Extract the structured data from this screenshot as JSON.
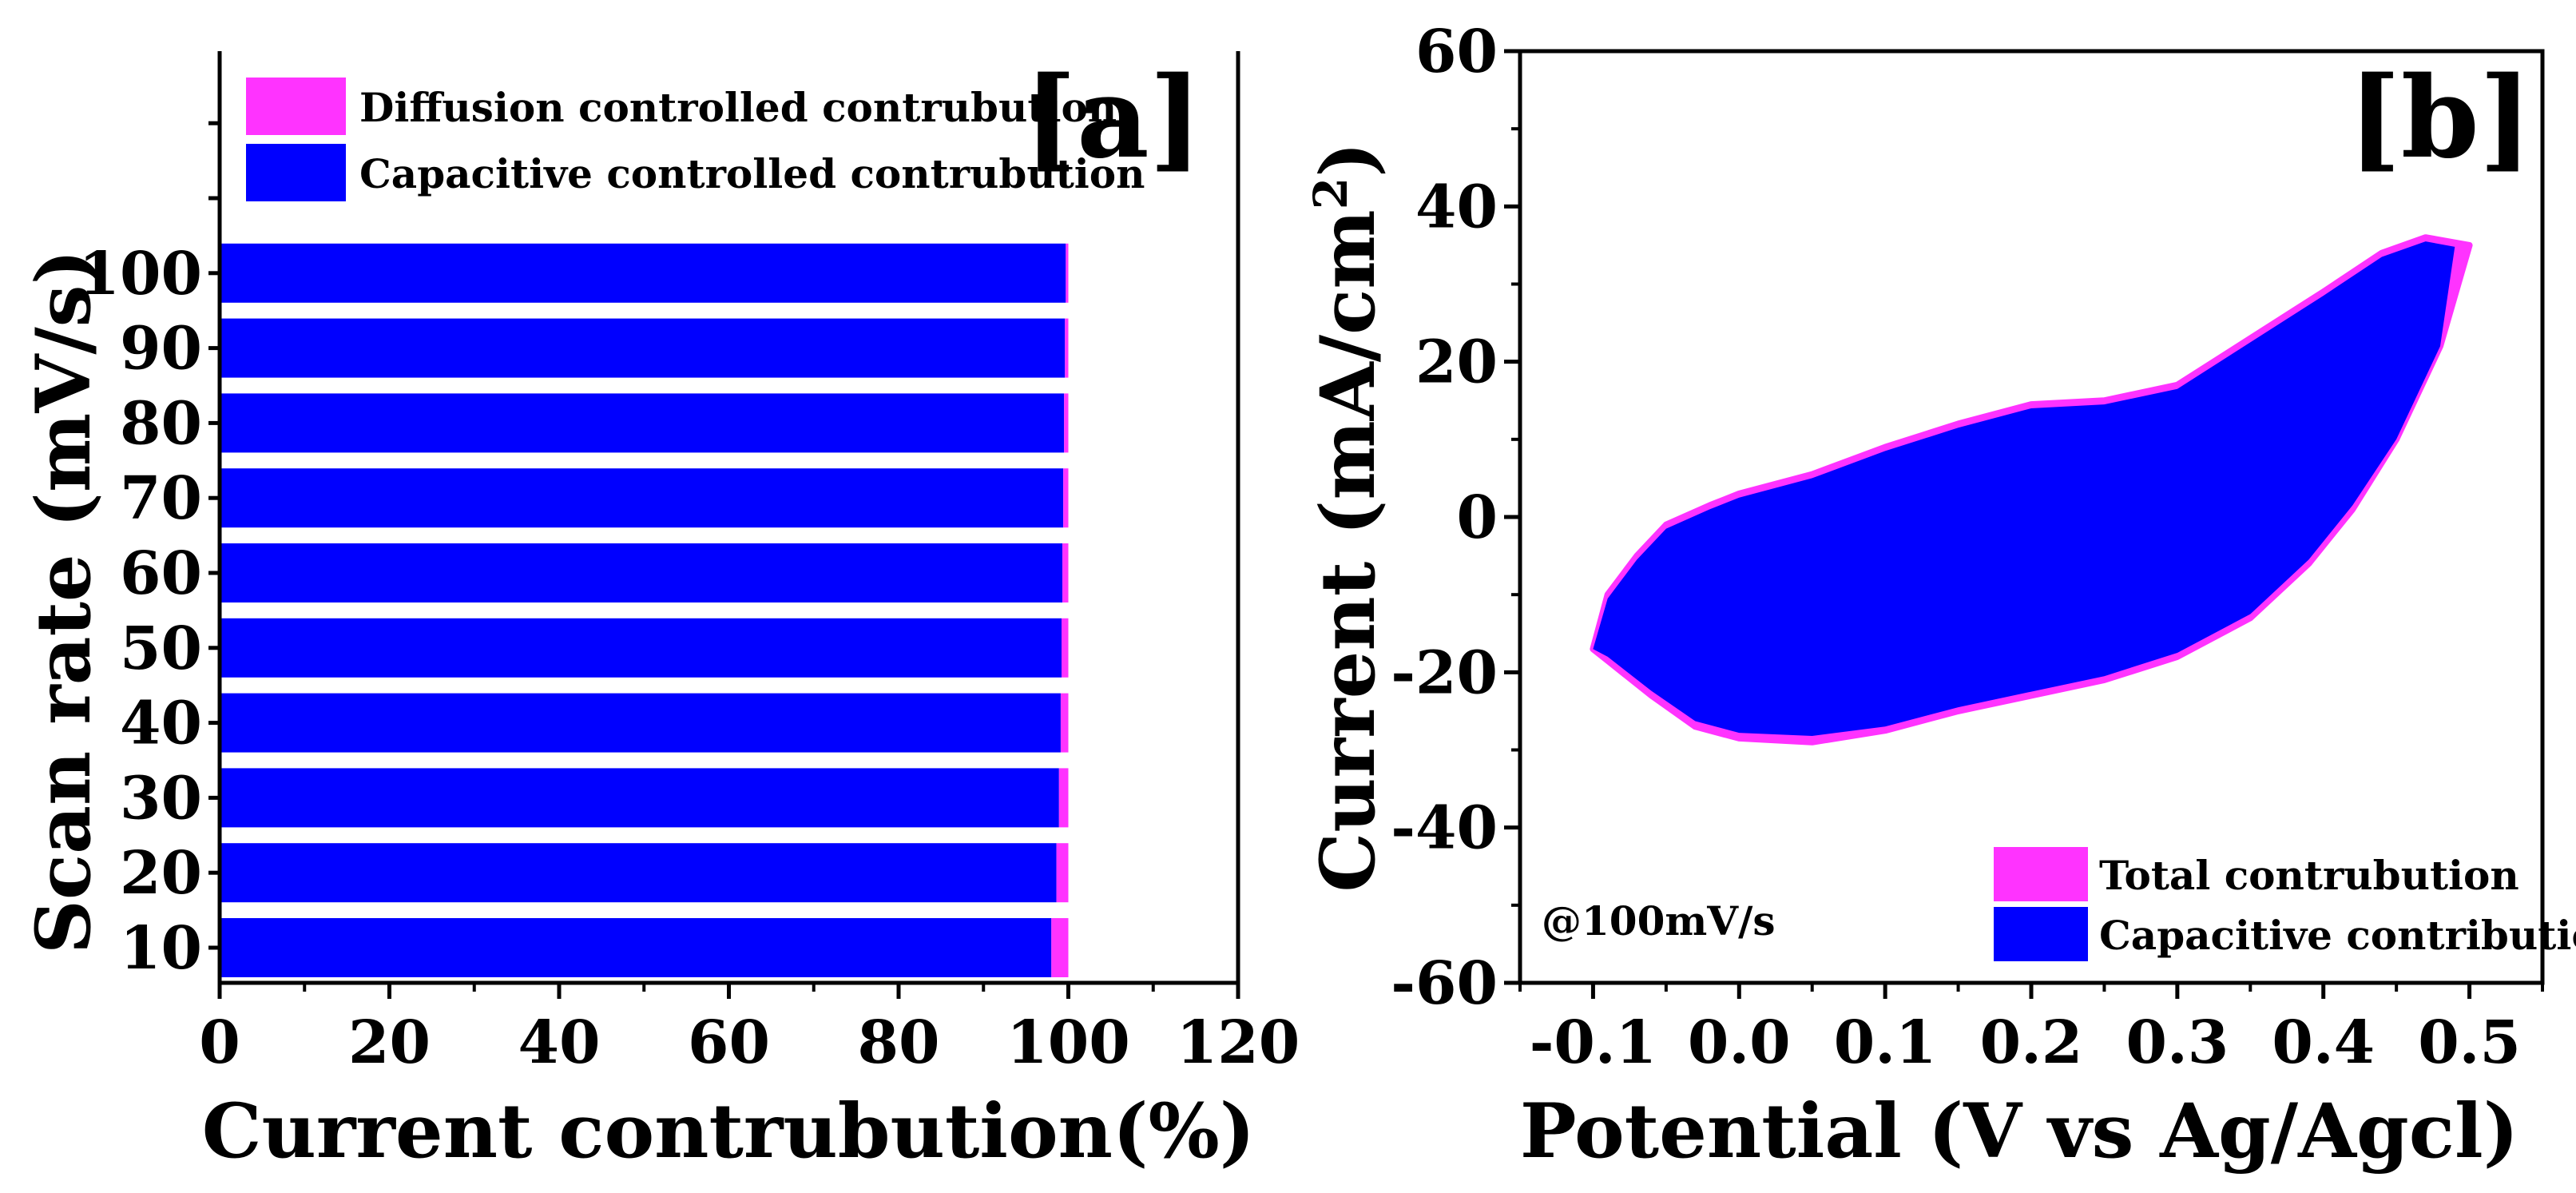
{
  "chart_data": [
    {
      "panel": "[a]",
      "type": "bar",
      "orientation": "horizontal",
      "stacked": true,
      "xlabel": "Current contrubution(%)",
      "ylabel": "Scan rate (mV/s)",
      "xlim": [
        0,
        120
      ],
      "xticks": [
        "0",
        "20",
        "40",
        "60",
        "80",
        "100",
        "120"
      ],
      "categories": [
        "10",
        "20",
        "30",
        "40",
        "50",
        "60",
        "70",
        "80",
        "90",
        "100"
      ],
      "series": [
        {
          "name": "Capacitive controlled contrubution",
          "color": "#0000ff",
          "values": [
            98,
            98.6,
            98.9,
            99.1,
            99.2,
            99.3,
            99.4,
            99.5,
            99.6,
            99.7
          ]
        },
        {
          "name": "Diffusion controlled contrubution",
          "color": "#ff33ff",
          "values": [
            2,
            1.4,
            1.1,
            0.9,
            0.8,
            0.7,
            0.6,
            0.5,
            0.4,
            0.3
          ]
        }
      ],
      "legend_position": "top-left"
    },
    {
      "panel": "[b]",
      "type": "area",
      "xlabel": "Potential (V vs Ag/Agcl)",
      "ylabel_prefix": "Current (mA/cm",
      "ylabel_sup": "2",
      "ylabel_suffix": ")",
      "xlim": [
        -0.15,
        0.55
      ],
      "ylim": [
        -60,
        60
      ],
      "xticks": [
        "-0.1",
        "0.0",
        "0.1",
        "0.2",
        "0.3",
        "0.4",
        "0.5"
      ],
      "yticks": [
        "-60",
        "-40",
        "-20",
        "0",
        "20",
        "40",
        "60"
      ],
      "annotation": "@100mV/s",
      "legend_position": "bottom-right",
      "series": [
        {
          "name": "Total contrubution",
          "color": "#ff33ff",
          "upper": [
            [
              -0.1,
              -17
            ],
            [
              -0.09,
              -10
            ],
            [
              -0.07,
              -5
            ],
            [
              -0.05,
              -1
            ],
            [
              -0.02,
              1.5
            ],
            [
              0.0,
              3
            ],
            [
              0.05,
              5.5
            ],
            [
              0.1,
              9
            ],
            [
              0.15,
              12
            ],
            [
              0.2,
              14.5
            ],
            [
              0.25,
              15
            ],
            [
              0.3,
              17
            ],
            [
              0.35,
              23
            ],
            [
              0.4,
              29
            ],
            [
              0.44,
              34
            ],
            [
              0.47,
              36
            ],
            [
              0.5,
              35
            ]
          ],
          "lower": [
            [
              0.5,
              35
            ],
            [
              0.48,
              22
            ],
            [
              0.45,
              10
            ],
            [
              0.42,
              1
            ],
            [
              0.39,
              -6
            ],
            [
              0.35,
              -13
            ],
            [
              0.3,
              -18
            ],
            [
              0.25,
              -21
            ],
            [
              0.2,
              -23
            ],
            [
              0.15,
              -25
            ],
            [
              0.1,
              -27.5
            ],
            [
              0.05,
              -29
            ],
            [
              0.0,
              -28.5
            ],
            [
              -0.03,
              -27
            ],
            [
              -0.06,
              -23
            ],
            [
              -0.09,
              -18.5
            ],
            [
              -0.1,
              -17
            ]
          ]
        },
        {
          "name": "Capacitive contribution",
          "color": "#0000ff",
          "upper": [
            [
              -0.1,
              -17
            ],
            [
              -0.09,
              -10.5
            ],
            [
              -0.07,
              -5.5
            ],
            [
              -0.05,
              -1.5
            ],
            [
              -0.02,
              1
            ],
            [
              0.0,
              2.5
            ],
            [
              0.05,
              5
            ],
            [
              0.1,
              8.5
            ],
            [
              0.15,
              11.5
            ],
            [
              0.2,
              14
            ],
            [
              0.25,
              14.5
            ],
            [
              0.3,
              16.5
            ],
            [
              0.35,
              22.5
            ],
            [
              0.4,
              28.5
            ],
            [
              0.44,
              33.5
            ],
            [
              0.47,
              35.5
            ],
            [
              0.49,
              34.8
            ]
          ],
          "lower": [
            [
              0.49,
              34.8
            ],
            [
              0.48,
              22
            ],
            [
              0.45,
              10
            ],
            [
              0.42,
              1.5
            ],
            [
              0.39,
              -5.5
            ],
            [
              0.35,
              -12.5
            ],
            [
              0.3,
              -17.5
            ],
            [
              0.25,
              -20.5
            ],
            [
              0.2,
              -22.5
            ],
            [
              0.15,
              -24.5
            ],
            [
              0.1,
              -27
            ],
            [
              0.05,
              -28.2
            ],
            [
              0.0,
              -27.8
            ],
            [
              -0.03,
              -26.3
            ],
            [
              -0.06,
              -22.4
            ],
            [
              -0.09,
              -18
            ],
            [
              -0.1,
              -17
            ]
          ]
        }
      ]
    }
  ]
}
